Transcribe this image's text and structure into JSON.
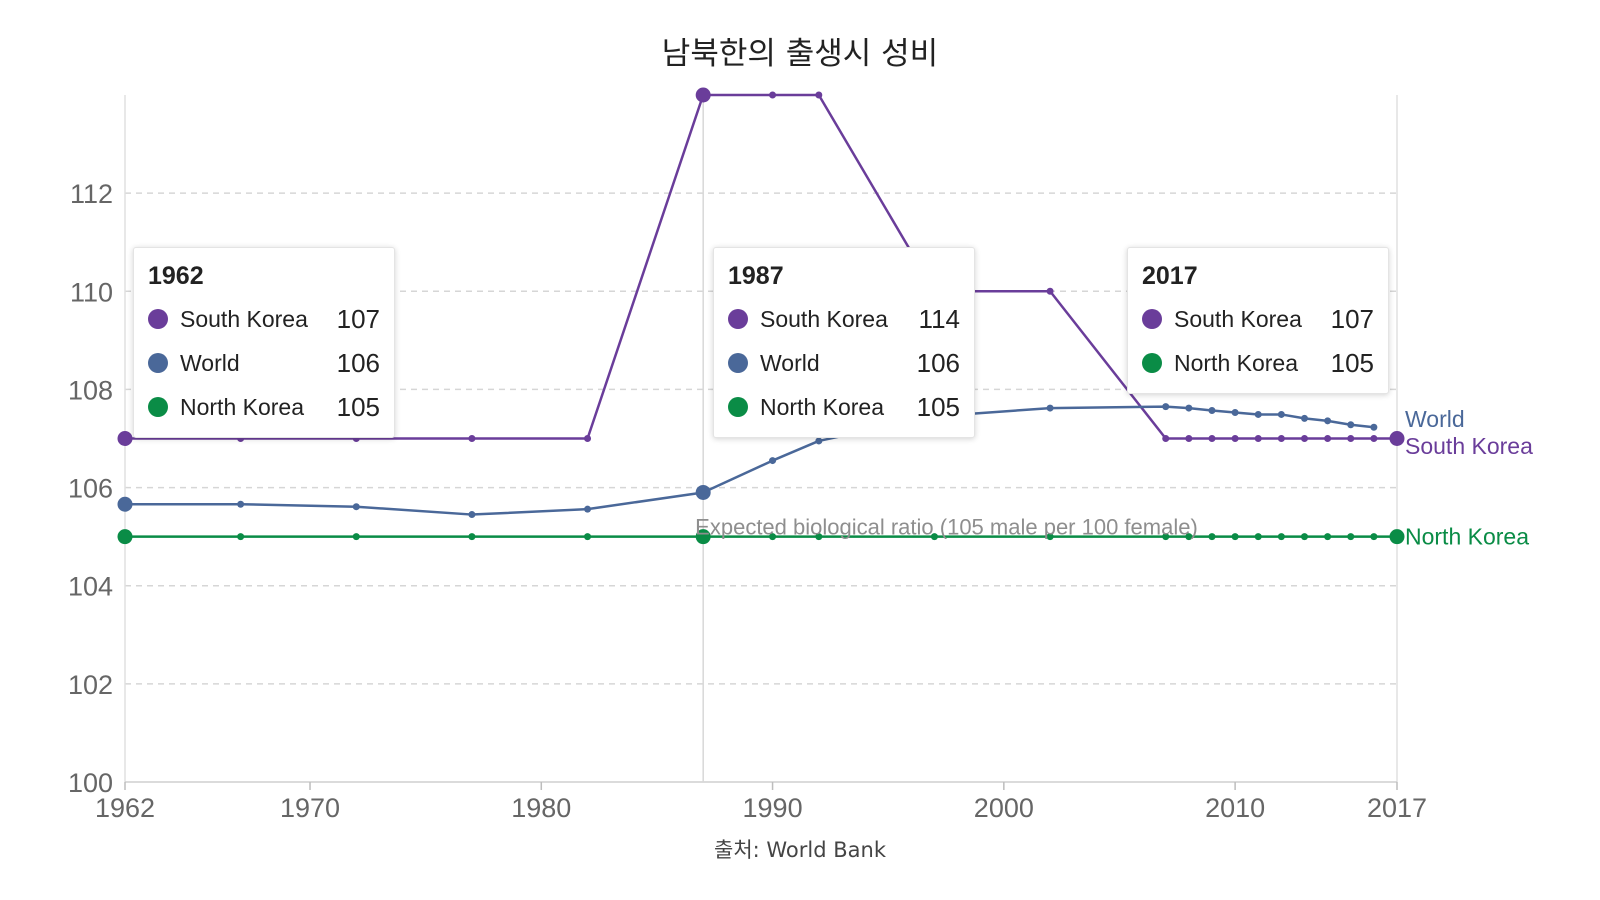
{
  "title": "남북한의 출생시 성비",
  "source": "출처: World Bank",
  "chart_data": {
    "type": "line",
    "ylim": [
      100,
      114
    ],
    "xlim": [
      1962,
      2017
    ],
    "y_ticks": [
      "100",
      "102",
      "104",
      "106",
      "108",
      "110",
      "112"
    ],
    "x_ticks": [
      "1962",
      "1970",
      "1980",
      "1990",
      "2000",
      "2010",
      "2017"
    ],
    "grid": true,
    "series": [
      {
        "name": "South Korea",
        "color": "#6a3d9a",
        "x": [
          1962,
          1967,
          1972,
          1977,
          1982,
          1987,
          1990,
          1992,
          1997,
          2002,
          2007,
          2008,
          2009,
          2010,
          2011,
          2012,
          2013,
          2014,
          2015,
          2016,
          2017
        ],
        "y": [
          107,
          107,
          107,
          107,
          107,
          114,
          114,
          114,
          110,
          110,
          107,
          107,
          107,
          107,
          107,
          107,
          107,
          107,
          107,
          107,
          107
        ]
      },
      {
        "name": "World",
        "color": "#4a6899",
        "x": [
          1962,
          1967,
          1972,
          1977,
          1982,
          1987,
          1990,
          1992,
          1997,
          2002,
          2007,
          2008,
          2009,
          2010,
          2011,
          2012,
          2013,
          2014,
          2015,
          2016
        ],
        "y": [
          105.66,
          105.66,
          105.61,
          105.45,
          105.56,
          105.9,
          106.55,
          106.95,
          107.45,
          107.62,
          107.65,
          107.62,
          107.57,
          107.53,
          107.49,
          107.49,
          107.41,
          107.36,
          107.28,
          107.23
        ]
      },
      {
        "name": "North Korea",
        "color": "#0a8c46",
        "x": [
          1962,
          1967,
          1972,
          1977,
          1982,
          1987,
          1990,
          1992,
          1997,
          2002,
          2007,
          2008,
          2009,
          2010,
          2011,
          2012,
          2013,
          2014,
          2015,
          2016,
          2017
        ],
        "y": [
          105,
          105,
          105,
          105,
          105,
          105,
          105,
          105,
          105,
          105,
          105,
          105,
          105,
          105,
          105,
          105,
          105,
          105,
          105,
          105,
          105
        ]
      }
    ],
    "end_labels": [
      {
        "name": "World",
        "y": 107.4
      },
      {
        "name": "South Korea",
        "y": 106.85
      },
      {
        "name": "North Korea",
        "y": 105
      }
    ],
    "highlight_x": [
      1962,
      1987,
      2017
    ],
    "marker_line_x": 1987,
    "annotation": {
      "text": "Expected biological ratio (105 male per 100 female)",
      "x": 1987,
      "y": 105
    }
  },
  "tooltips": [
    {
      "year": "1962",
      "rows": [
        {
          "name": "South Korea",
          "value": "107",
          "color": "#6a3d9a"
        },
        {
          "name": "World",
          "value": "106",
          "color": "#4a6899"
        },
        {
          "name": "North Korea",
          "value": "105",
          "color": "#0a8c46"
        }
      ]
    },
    {
      "year": "1987",
      "rows": [
        {
          "name": "South Korea",
          "value": "114",
          "color": "#6a3d9a"
        },
        {
          "name": "World",
          "value": "106",
          "color": "#4a6899"
        },
        {
          "name": "North Korea",
          "value": "105",
          "color": "#0a8c46"
        }
      ]
    },
    {
      "year": "2017",
      "rows": [
        {
          "name": "South Korea",
          "value": "107",
          "color": "#6a3d9a"
        },
        {
          "name": "North Korea",
          "value": "105",
          "color": "#0a8c46"
        }
      ]
    }
  ]
}
